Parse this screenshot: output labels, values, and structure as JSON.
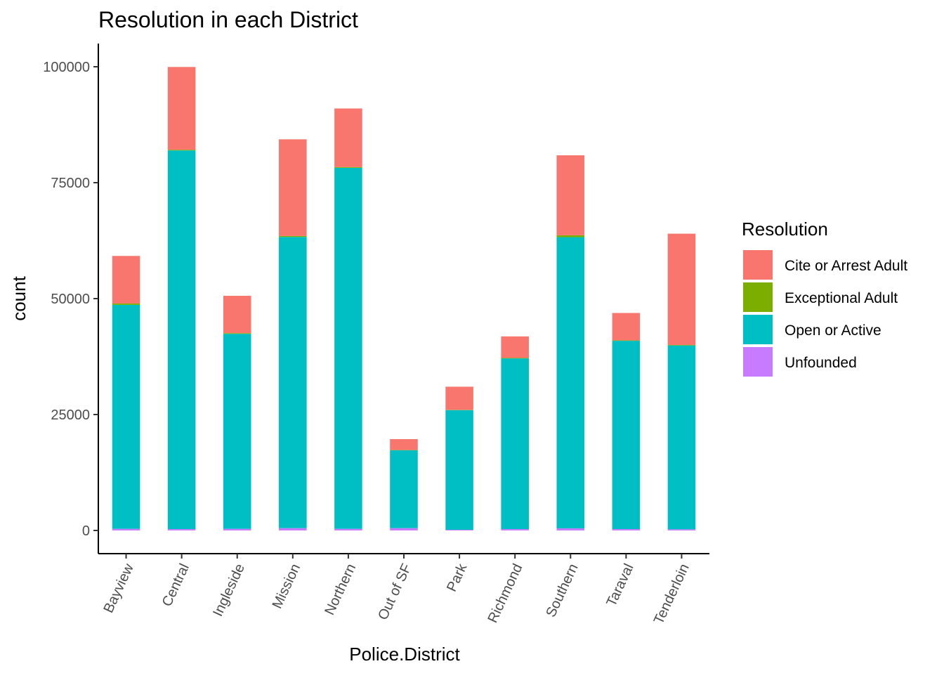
{
  "chart_data": {
    "type": "bar",
    "stacked": true,
    "title": "Resolution in each District",
    "xlabel": "Police.District",
    "ylabel": "count",
    "ylim": [
      -5000,
      105000
    ],
    "yticks": [
      0,
      25000,
      50000,
      75000,
      100000
    ],
    "categories": [
      "Bayview",
      "Central",
      "Ingleside",
      "Mission",
      "Northern",
      "Out of SF",
      "Park",
      "Richmond",
      "Southern",
      "Taraval",
      "Tenderloin"
    ],
    "legend": {
      "title": "Resolution",
      "position": "right"
    },
    "grid": false,
    "series": [
      {
        "name": "Unfounded",
        "color": "#C77CFF",
        "values": [
          350,
          300,
          350,
          500,
          350,
          500,
          150,
          300,
          450,
          300,
          250
        ]
      },
      {
        "name": "Open or Active",
        "color": "#00BFC4",
        "values": [
          48300,
          81650,
          42050,
          62800,
          77850,
          16800,
          25800,
          36800,
          62800,
          40600,
          39650
        ]
      },
      {
        "name": "Exceptional Adult",
        "color": "#7CAE00",
        "values": [
          300,
          150,
          150,
          200,
          150,
          50,
          50,
          100,
          400,
          100,
          100
        ]
      },
      {
        "name": "Cite or Arrest Adult",
        "color": "#F8766D",
        "values": [
          10250,
          17850,
          8050,
          20850,
          12650,
          2350,
          5000,
          4650,
          17250,
          5900,
          24000
        ]
      }
    ]
  }
}
